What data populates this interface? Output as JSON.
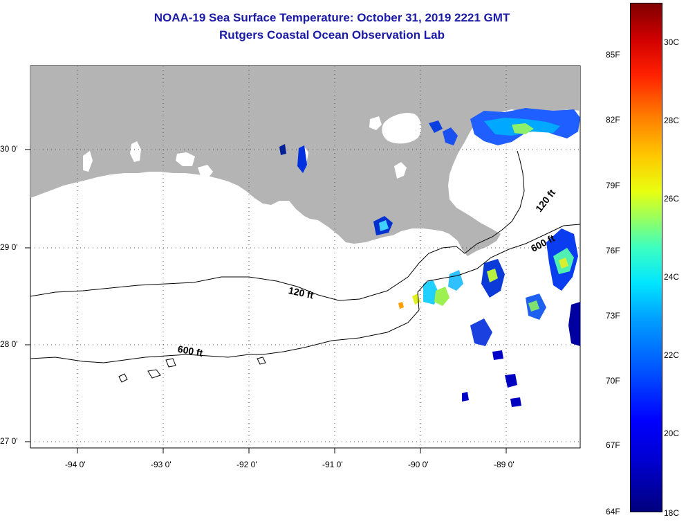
{
  "title": {
    "line1": "NOAA-19 Sea Surface Temperature:  October 31, 2019 2221 GMT",
    "line2": "Rutgers Coastal Ocean Observation Lab"
  },
  "map": {
    "lon_range": [
      -94.55,
      -88.25
    ],
    "lat_range": [
      26.95,
      30.85
    ],
    "x_ticks": [
      "-94 0'",
      "-93 0'",
      "-92 0'",
      "-91 0'",
      "-90 0'",
      "-89 0'"
    ],
    "y_ticks": [
      "30 0'",
      "29 0'",
      "28 0'",
      "27 0'"
    ],
    "land_color": "#b4b4b4",
    "contours": [
      {
        "label": "120 ft"
      },
      {
        "label": "120 ft"
      },
      {
        "label": "600 ft"
      },
      {
        "label": "600 ft"
      }
    ]
  },
  "colorbar": {
    "fahrenheit": [
      "85F",
      "82F",
      "79F",
      "76F",
      "73F",
      "70F",
      "67F",
      "64F"
    ],
    "celsius": [
      "30C",
      "28C",
      "26C",
      "24C",
      "22C",
      "20C",
      "18C"
    ]
  }
}
